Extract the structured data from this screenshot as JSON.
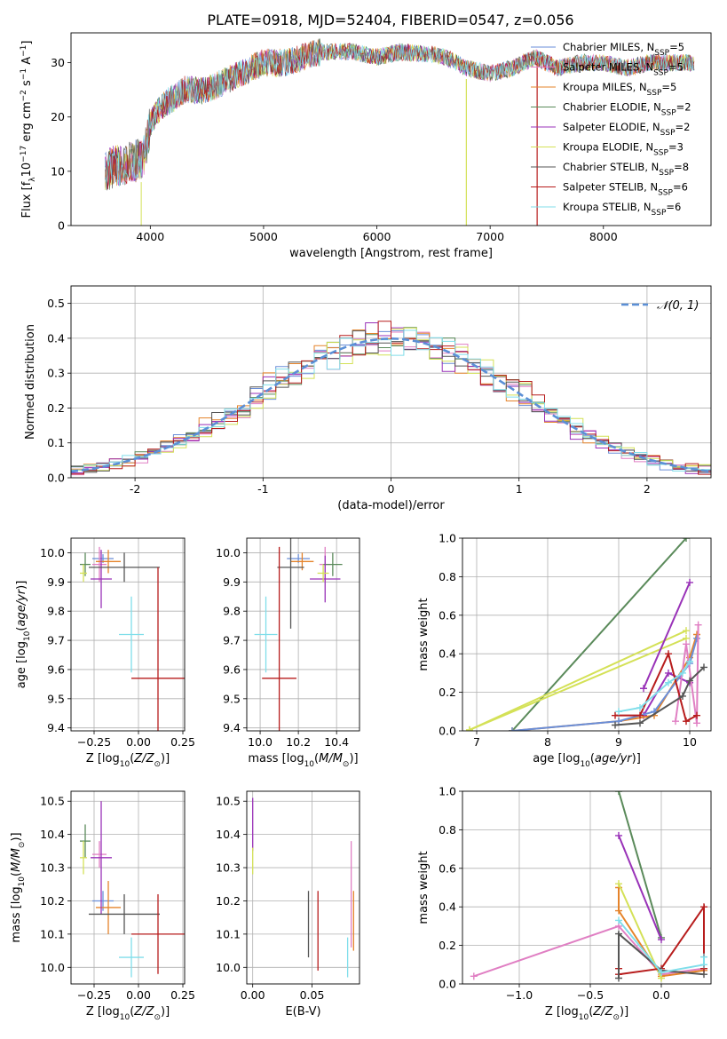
{
  "figure_title": "PLATE=0918, MJD=52404, FIBERID=0547, z=0.056",
  "colors": {
    "Chabrier MILES": "#6a8ed8",
    "Salpeter MILES": "#e07fc3",
    "Kroupa MILES": "#e5832a",
    "Chabrier ELODIE": "#5a8a5a",
    "Salpeter ELODIE": "#9932b8",
    "Kroupa ELODIE": "#d4e157",
    "Chabrier STELIB": "#555555",
    "Salpeter STELIB": "#b71c1c",
    "Kroupa STELIB": "#80deea",
    "normal": "#5b8fd6"
  },
  "chart_data": [
    {
      "id": "spectrum",
      "type": "line",
      "title": "PLATE=0918, MJD=52404, FIBERID=0547, z=0.056",
      "xlabel": "wavelength [Angstrom, rest frame]",
      "ylabel": "Flux [f_λ 10^-17 erg cm^-2 s^-1 A^-1]",
      "xlim": [
        3300,
        8950
      ],
      "ylim": [
        0,
        35.5
      ],
      "xticks": [
        4000,
        5000,
        6000,
        7000,
        8000
      ],
      "yticks": [
        0,
        10,
        20,
        30
      ],
      "grid": false,
      "legend_position": "top-right",
      "series": [
        {
          "name": "Chabrier MILES",
          "nssp": "5"
        },
        {
          "name": "Salpeter MILES",
          "nssp": "5"
        },
        {
          "name": "Kroupa MILES",
          "nssp": "5"
        },
        {
          "name": "Chabrier ELODIE",
          "nssp": "2"
        },
        {
          "name": "Salpeter ELODIE",
          "nssp": "2"
        },
        {
          "name": "Kroupa ELODIE",
          "nssp": "3"
        },
        {
          "name": "Chabrier STELIB",
          "nssp": "8"
        },
        {
          "name": "Salpeter STELIB",
          "nssp": "6"
        },
        {
          "name": "Kroupa STELIB",
          "nssp": "6"
        }
      ],
      "continuum": {
        "x": [
          3600,
          3700,
          3800,
          3900,
          3950,
          4000,
          4100,
          4300,
          4500,
          4800,
          5000,
          5200,
          5500,
          5800,
          6000,
          6200,
          6500,
          6600,
          6800,
          7000,
          7200,
          7400,
          7600,
          7800,
          8000,
          8200,
          8400,
          8700,
          8800
        ],
        "y": [
          10,
          11,
          11.5,
          12,
          13,
          19,
          22,
          25,
          25,
          28,
          30,
          30,
          32,
          32,
          31,
          32,
          31.5,
          31,
          29,
          28,
          29,
          31,
          29,
          30,
          30,
          29,
          30,
          30,
          30
        ]
      }
    },
    {
      "id": "residuals",
      "type": "histogram",
      "xlabel": "(data-model)/error",
      "ylabel": "Normed distribution",
      "xlim": [
        -2.5,
        2.5
      ],
      "ylim": [
        0,
        0.55
      ],
      "xticks": [
        -2,
        -1,
        0,
        1,
        2
      ],
      "yticks": [
        0.0,
        0.1,
        0.2,
        0.3,
        0.4,
        0.5
      ],
      "grid": true,
      "legend_position": "top-right",
      "legend": "𝒩(0, 1)"
    },
    {
      "id": "age_vs_Z",
      "type": "errorbar",
      "xlabel": "Z [log10(Z/Z⊙)]",
      "ylabel": "age [log10(age/yr)]",
      "xlim": [
        -0.38,
        0.26
      ],
      "ylim": [
        9.39,
        10.05
      ],
      "xticks": [
        -0.25,
        0.0,
        0.25
      ],
      "xticklabels": [
        "−0.25",
        "0.00",
        "0.25"
      ],
      "yticks": [
        9.4,
        9.5,
        9.6,
        9.7,
        9.8,
        9.9,
        10.0
      ],
      "grid": true,
      "points": [
        {
          "series": "Chabrier MILES",
          "x": -0.2,
          "xerr": 0.06,
          "y": 9.98,
          "yerr": 0.015
        },
        {
          "series": "Salpeter MILES",
          "x": -0.22,
          "xerr": 0.04,
          "y": 9.96,
          "yerr": 0.06
        },
        {
          "series": "Kroupa MILES",
          "x": -0.17,
          "xerr": 0.07,
          "y": 9.97,
          "yerr": 0.04
        },
        {
          "series": "Chabrier ELODIE",
          "x": -0.3,
          "xerr": 0.03,
          "y": 9.96,
          "yerr": 0.04
        },
        {
          "series": "Salpeter ELODIE",
          "x": -0.21,
          "xerr": 0.06,
          "y": 9.91,
          "yerr": 0.1
        },
        {
          "series": "Kroupa ELODIE",
          "x": -0.31,
          "xerr": 0.02,
          "y": 9.93,
          "yerr": 0.03
        },
        {
          "series": "Chabrier STELIB",
          "x": -0.08,
          "xerr": 0.2,
          "y": 9.95,
          "yerr": 0.05
        },
        {
          "series": "Salpeter STELIB",
          "x": 0.11,
          "xerr": 0.15,
          "y": 9.57,
          "yerr": 0.38
        },
        {
          "series": "Kroupa STELIB",
          "x": -0.04,
          "xerr": 0.07,
          "y": 9.72,
          "yerr": 0.13
        }
      ]
    },
    {
      "id": "age_vs_mass",
      "type": "errorbar",
      "xlabel": "mass [log10(M/M⊙)]",
      "xlim": [
        9.93,
        10.52
      ],
      "ylim": [
        9.39,
        10.05
      ],
      "xticks": [
        10.0,
        10.2,
        10.4
      ],
      "xticklabels": [
        "10.0",
        "10.2",
        "10.4"
      ],
      "yticks": [
        9.4,
        9.5,
        9.6,
        9.7,
        9.8,
        9.9,
        10.0
      ],
      "grid": true,
      "points": [
        {
          "series": "Chabrier MILES",
          "x": 10.2,
          "xerr": 0.06,
          "y": 9.98,
          "yerr": 0.015
        },
        {
          "series": "Salpeter MILES",
          "x": 10.34,
          "xerr": 0.03,
          "y": 9.96,
          "yerr": 0.06
        },
        {
          "series": "Kroupa MILES",
          "x": 10.22,
          "xerr": 0.06,
          "y": 9.97,
          "yerr": 0.03
        },
        {
          "series": "Chabrier ELODIE",
          "x": 10.38,
          "xerr": 0.05,
          "y": 9.96,
          "yerr": 0.04
        },
        {
          "series": "Salpeter ELODIE",
          "x": 10.34,
          "xerr": 0.08,
          "y": 9.91,
          "yerr": 0.08
        },
        {
          "series": "Kroupa ELODIE",
          "x": 10.33,
          "xerr": 0.03,
          "y": 9.93,
          "yerr": 0.03
        },
        {
          "series": "Chabrier STELIB",
          "x": 10.16,
          "xerr": 0.07,
          "y": 9.95,
          "yerr": 0.21
        },
        {
          "series": "Salpeter STELIB",
          "x": 10.1,
          "xerr": 0.09,
          "y": 9.57,
          "yerr": 0.45
        },
        {
          "series": "Kroupa STELIB",
          "x": 10.03,
          "xerr": 0.06,
          "y": 9.72,
          "yerr": 0.13
        }
      ]
    },
    {
      "id": "weight_vs_age",
      "type": "line",
      "xlabel": "age [log10(age/yr)]",
      "ylabel": "mass weight",
      "xlim": [
        6.8,
        10.3
      ],
      "ylim": [
        0,
        1.0
      ],
      "xticks": [
        7,
        8,
        9,
        10
      ],
      "yticks": [
        0.0,
        0.2,
        0.4,
        0.6,
        0.8,
        1.0
      ],
      "grid": true,
      "series": [
        {
          "name": "Chabrier ELODIE",
          "x": [
            7.5,
            9.95
          ],
          "y": [
            0.0,
            1.0
          ]
        },
        {
          "name": "Kroupa ELODIE",
          "x": [
            6.9,
            9.95
          ],
          "y": [
            0.005,
            0.52
          ]
        },
        {
          "name": "Kroupa ELODIE",
          "x": [
            6.9,
            9.95
          ],
          "y": [
            0.005,
            0.48
          ]
        },
        {
          "name": "Salpeter ELODIE",
          "x": [
            9.35,
            10.0
          ],
          "y": [
            0.22,
            0.77
          ]
        },
        {
          "name": "Salpeter ELODIE",
          "x": [
            9.35,
            9.7,
            10.0
          ],
          "y": [
            0.08,
            0.3,
            0.25
          ]
        },
        {
          "name": "Kroupa MILES",
          "x": [
            7.5,
            9.0,
            9.5,
            10.0,
            10.1
          ],
          "y": [
            0.0,
            0.05,
            0.08,
            0.38,
            0.5
          ]
        },
        {
          "name": "Chabrier MILES",
          "x": [
            7.5,
            9.0,
            9.5,
            10.0,
            10.1
          ],
          "y": [
            0.0,
            0.05,
            0.1,
            0.35,
            0.48
          ]
        },
        {
          "name": "Salpeter MILES",
          "x": [
            9.8,
            9.95,
            10.1,
            10.12
          ],
          "y": [
            0.05,
            0.45,
            0.04,
            0.55
          ]
        },
        {
          "name": "Salpeter STELIB",
          "x": [
            8.95,
            9.3,
            9.7,
            9.95,
            10.1
          ],
          "y": [
            0.08,
            0.08,
            0.4,
            0.05,
            0.08
          ]
        },
        {
          "name": "Chabrier STELIB",
          "x": [
            8.95,
            9.3,
            9.9,
            10.0,
            10.2
          ],
          "y": [
            0.03,
            0.04,
            0.18,
            0.26,
            0.33
          ]
        },
        {
          "name": "Kroupa STELIB",
          "x": [
            9.0,
            9.3,
            9.7,
            9.9,
            10.0
          ],
          "y": [
            0.1,
            0.12,
            0.25,
            0.3,
            0.36
          ]
        }
      ]
    },
    {
      "id": "mass_vs_Z",
      "type": "errorbar",
      "xlabel": "Z [log10(Z/Z⊙)]",
      "ylabel": "mass [log10(M/M⊙)]",
      "xlim": [
        -0.38,
        0.26
      ],
      "ylim": [
        9.95,
        10.53
      ],
      "xticks": [
        -0.25,
        0.0,
        0.25
      ],
      "xticklabels": [
        "−0.25",
        "0.00",
        "0.25"
      ],
      "yticks": [
        10.0,
        10.1,
        10.2,
        10.3,
        10.4,
        10.5
      ],
      "grid": true,
      "points": [
        {
          "series": "Chabrier MILES",
          "x": -0.2,
          "xerr": 0.06,
          "y": 10.2,
          "yerr": 0.03
        },
        {
          "series": "Salpeter MILES",
          "x": -0.22,
          "xerr": 0.04,
          "y": 10.34,
          "yerr": 0.04
        },
        {
          "series": "Kroupa MILES",
          "x": -0.17,
          "xerr": 0.07,
          "y": 10.18,
          "yerr": 0.08
        },
        {
          "series": "Chabrier ELODIE",
          "x": -0.3,
          "xerr": 0.03,
          "y": 10.38,
          "yerr": 0.05
        },
        {
          "series": "Salpeter ELODIE",
          "x": -0.21,
          "xerr": 0.06,
          "y": 10.33,
          "yerr": 0.17
        },
        {
          "series": "Kroupa ELODIE",
          "x": -0.31,
          "xerr": 0.02,
          "y": 10.33,
          "yerr": 0.05
        },
        {
          "series": "Chabrier STELIB",
          "x": -0.08,
          "xerr": 0.2,
          "y": 10.16,
          "yerr": 0.06
        },
        {
          "series": "Salpeter STELIB",
          "x": 0.11,
          "xerr": 0.15,
          "y": 10.1,
          "yerr": 0.12
        },
        {
          "series": "Kroupa STELIB",
          "x": -0.04,
          "xerr": 0.07,
          "y": 10.03,
          "yerr": 0.06
        }
      ]
    },
    {
      "id": "mass_vs_EBV",
      "type": "errorbar",
      "xlabel": "E(B-V)",
      "xlim": [
        -0.005,
        0.09
      ],
      "ylim": [
        9.95,
        10.53
      ],
      "xticks": [
        0.0,
        0.05
      ],
      "xticklabels": [
        "0.00",
        "0.05"
      ],
      "yticks": [
        10.0,
        10.1,
        10.2,
        10.3,
        10.4,
        10.5
      ],
      "grid": true,
      "points": [
        {
          "series": "Salpeter ELODIE",
          "x": 0.0,
          "xerr": 0,
          "y": 10.43,
          "yerr": 0.08
        },
        {
          "series": "Kroupa ELODIE",
          "x": 0.0,
          "xerr": 0,
          "y": 10.32,
          "yerr": 0.04
        },
        {
          "series": "Chabrier STELIB",
          "x": 0.047,
          "xerr": 0,
          "y": 10.13,
          "yerr": 0.1
        },
        {
          "series": "Salpeter STELIB",
          "x": 0.055,
          "xerr": 0,
          "y": 10.11,
          "yerr": 0.12
        },
        {
          "series": "Kroupa STELIB",
          "x": 0.08,
          "xerr": 0,
          "y": 10.03,
          "yerr": 0.06
        },
        {
          "series": "Salpeter MILES",
          "x": 0.083,
          "xerr": 0,
          "y": 10.22,
          "yerr": 0.16
        },
        {
          "series": "Kroupa MILES",
          "x": 0.085,
          "xerr": 0,
          "y": 10.14,
          "yerr": 0.09
        }
      ]
    },
    {
      "id": "weight_vs_Z",
      "type": "line",
      "xlabel": "Z [log10(Z/Z⊙)]",
      "ylabel": "mass weight",
      "xlim": [
        -1.4,
        0.35
      ],
      "ylim": [
        0,
        1.0
      ],
      "xticks": [
        -1.0,
        -0.5,
        0.0
      ],
      "xticklabels": [
        "−1.0",
        "−0.5",
        "0.0"
      ],
      "yticks": [
        0.0,
        0.2,
        0.4,
        0.6,
        0.8,
        1.0
      ],
      "grid": true,
      "series": [
        {
          "name": "Chabrier ELODIE",
          "x": [
            -0.3,
            0.0
          ],
          "y": [
            1.0,
            0.24
          ]
        },
        {
          "name": "Salpeter ELODIE",
          "x": [
            -0.3,
            0.0
          ],
          "y": [
            0.77,
            0.23
          ]
        },
        {
          "name": "Salpeter MILES",
          "x": [
            -1.32,
            -0.3,
            0.0,
            0.3
          ],
          "y": [
            0.04,
            0.3,
            0.05,
            0.08
          ]
        },
        {
          "name": "Kroupa MILES",
          "x": [
            -0.3,
            -0.3,
            0.0,
            0.3
          ],
          "y": [
            0.5,
            0.38,
            0.04,
            0.07
          ]
        },
        {
          "name": "Kroupa ELODIE",
          "x": [
            -0.3,
            0.0
          ],
          "y": [
            0.52,
            0.03
          ]
        },
        {
          "name": "Salpeter STELIB",
          "x": [
            -0.3,
            -0.3,
            0.0,
            0.3,
            0.3
          ],
          "y": [
            0.08,
            0.05,
            0.08,
            0.4,
            0.08
          ]
        },
        {
          "name": "Chabrier STELIB",
          "x": [
            -0.3,
            -0.3,
            0.0,
            0.3
          ],
          "y": [
            0.03,
            0.26,
            0.07,
            0.05
          ]
        },
        {
          "name": "Kroupa STELIB",
          "x": [
            -0.3,
            0.0,
            0.3,
            0.3
          ],
          "y": [
            0.33,
            0.06,
            0.1,
            0.14
          ]
        }
      ]
    }
  ]
}
